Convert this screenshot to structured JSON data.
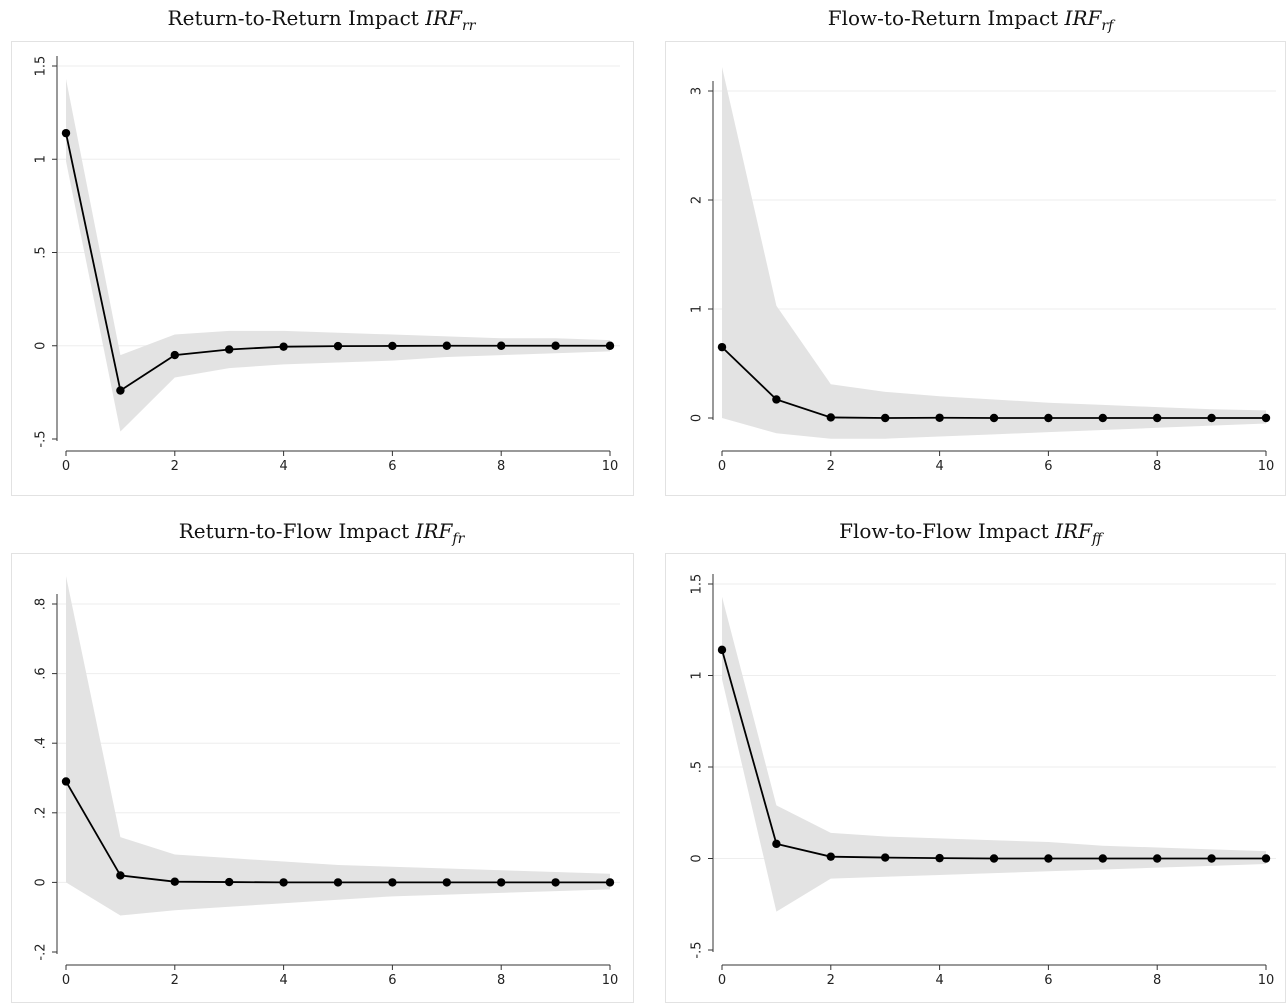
{
  "colors": {
    "band": "#e3e3e3",
    "line": "#000000",
    "grid": "#eeeeee",
    "axis": "#333333"
  },
  "chart_data": [
    {
      "type": "line",
      "title_prefix": "Return-to-Return Impact ",
      "title_main": "IRF",
      "title_sub": "rr",
      "x": [
        0,
        1,
        2,
        3,
        4,
        5,
        6,
        7,
        8,
        9,
        10
      ],
      "xticks": [
        0,
        2,
        4,
        6,
        8,
        10
      ],
      "yticks": [
        -0.5,
        0,
        0.5,
        1,
        1.5
      ],
      "ytick_labels": [
        "-.5",
        "0",
        ".5",
        "1",
        "1.5"
      ],
      "ylim": [
        -0.5,
        1.5
      ],
      "xlim": [
        0,
        10
      ],
      "grid": true,
      "series": [
        {
          "values": [
            1.14,
            -0.24,
            -0.05,
            -0.02,
            -0.005,
            -0.002,
            -0.001,
            0,
            0,
            0,
            0
          ]
        }
      ],
      "ci_upper": [
        1.43,
        -0.05,
        0.06,
        0.08,
        0.08,
        0.07,
        0.06,
        0.05,
        0.04,
        0.04,
        0.03
      ],
      "ci_lower": [
        0.99,
        -0.46,
        -0.17,
        -0.12,
        -0.1,
        -0.09,
        -0.08,
        -0.06,
        -0.05,
        -0.04,
        -0.03
      ]
    },
    {
      "type": "line",
      "title_prefix": "Flow-to-Return Impact ",
      "title_main": "IRF",
      "title_sub": "rf",
      "x": [
        0,
        1,
        2,
        3,
        4,
        5,
        6,
        7,
        8,
        9,
        10
      ],
      "xticks": [
        0,
        2,
        4,
        6,
        8,
        10
      ],
      "yticks": [
        0,
        1,
        2,
        3
      ],
      "ytick_labels": [
        "0",
        "1",
        "2",
        "3"
      ],
      "ylim": [
        -0.28,
        3.3
      ],
      "xlim": [
        0,
        10
      ],
      "grid": true,
      "series": [
        {
          "values": [
            0.65,
            0.17,
            0.005,
            0.0,
            0.002,
            0.0,
            0.0,
            0.0,
            0.0,
            0.0,
            0.0
          ]
        }
      ],
      "ci_upper": [
        3.22,
        1.03,
        0.31,
        0.24,
        0.2,
        0.17,
        0.14,
        0.12,
        0.1,
        0.08,
        0.07
      ],
      "ci_lower": [
        0.0,
        -0.14,
        -0.19,
        -0.19,
        -0.17,
        -0.15,
        -0.13,
        -0.11,
        -0.09,
        -0.07,
        -0.05
      ]
    },
    {
      "type": "line",
      "title_prefix": "Return-to-Flow Impact ",
      "title_main": "IRF",
      "title_sub": "fr",
      "x": [
        0,
        1,
        2,
        3,
        4,
        5,
        6,
        7,
        8,
        9,
        10
      ],
      "xticks": [
        0,
        2,
        4,
        6,
        8,
        10
      ],
      "yticks": [
        -0.2,
        0,
        0.2,
        0.4,
        0.6,
        0.8
      ],
      "ytick_labels": [
        "-.2",
        "0",
        ".2",
        ".4",
        ".6",
        ".8"
      ],
      "ylim": [
        -0.22,
        0.9
      ],
      "xlim": [
        0,
        10
      ],
      "grid": true,
      "series": [
        {
          "values": [
            0.29,
            0.02,
            0.002,
            0.001,
            0.0,
            0.0,
            0.0,
            0.0,
            0.0,
            0.0,
            0.0
          ]
        }
      ],
      "ci_upper": [
        0.88,
        0.13,
        0.08,
        0.07,
        0.06,
        0.05,
        0.045,
        0.04,
        0.035,
        0.03,
        0.025
      ],
      "ci_lower": [
        0.0,
        -0.095,
        -0.08,
        -0.07,
        -0.06,
        -0.05,
        -0.04,
        -0.035,
        -0.03,
        -0.025,
        -0.02
      ]
    },
    {
      "type": "line",
      "title_prefix": "Flow-to-Flow Impact ",
      "title_main": "IRF",
      "title_sub": "ff",
      "x": [
        0,
        1,
        2,
        3,
        4,
        5,
        6,
        7,
        8,
        9,
        10
      ],
      "xticks": [
        0,
        2,
        4,
        6,
        8,
        10
      ],
      "yticks": [
        -0.5,
        0,
        0.5,
        1,
        1.5
      ],
      "ytick_labels": [
        "-.5",
        "0",
        ".5",
        "1",
        "1.5"
      ],
      "ylim": [
        -0.56,
        1.5
      ],
      "xlim": [
        0,
        10
      ],
      "grid": true,
      "series": [
        {
          "values": [
            1.14,
            0.08,
            0.01,
            0.005,
            0.002,
            0.0,
            0.0,
            0.0,
            0.0,
            0.0,
            0.0
          ]
        }
      ],
      "ci_upper": [
        1.43,
        0.29,
        0.14,
        0.12,
        0.11,
        0.1,
        0.09,
        0.07,
        0.06,
        0.05,
        0.04
      ],
      "ci_lower": [
        0.98,
        -0.29,
        -0.11,
        -0.1,
        -0.09,
        -0.08,
        -0.07,
        -0.06,
        -0.05,
        -0.04,
        -0.03
      ]
    }
  ]
}
